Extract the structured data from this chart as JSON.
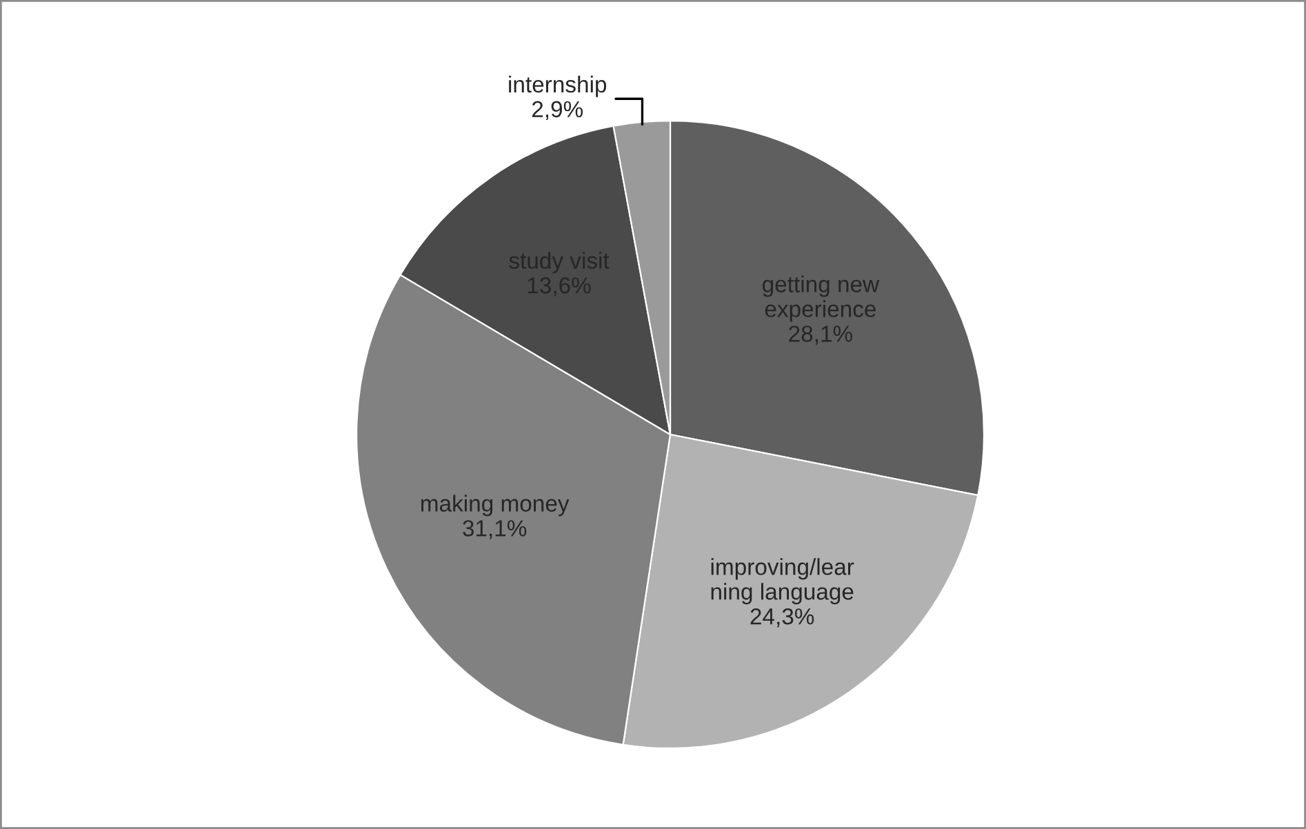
{
  "chart_data": {
    "type": "pie",
    "categories": [
      "getting new\nexperience",
      "improving/lear\nning language",
      "making money",
      "study visit",
      "internship"
    ],
    "values": [
      28.1,
      24.3,
      31.1,
      13.6,
      2.9
    ],
    "value_labels": [
      "28,1%",
      "24,3%",
      "31,1%",
      "13,6%",
      "2,9%"
    ],
    "colors": [
      "#5f5f5f",
      "#b2b2b2",
      "#818181",
      "#4a4a4a",
      "#9a9a9a"
    ],
    "legend": false
  }
}
